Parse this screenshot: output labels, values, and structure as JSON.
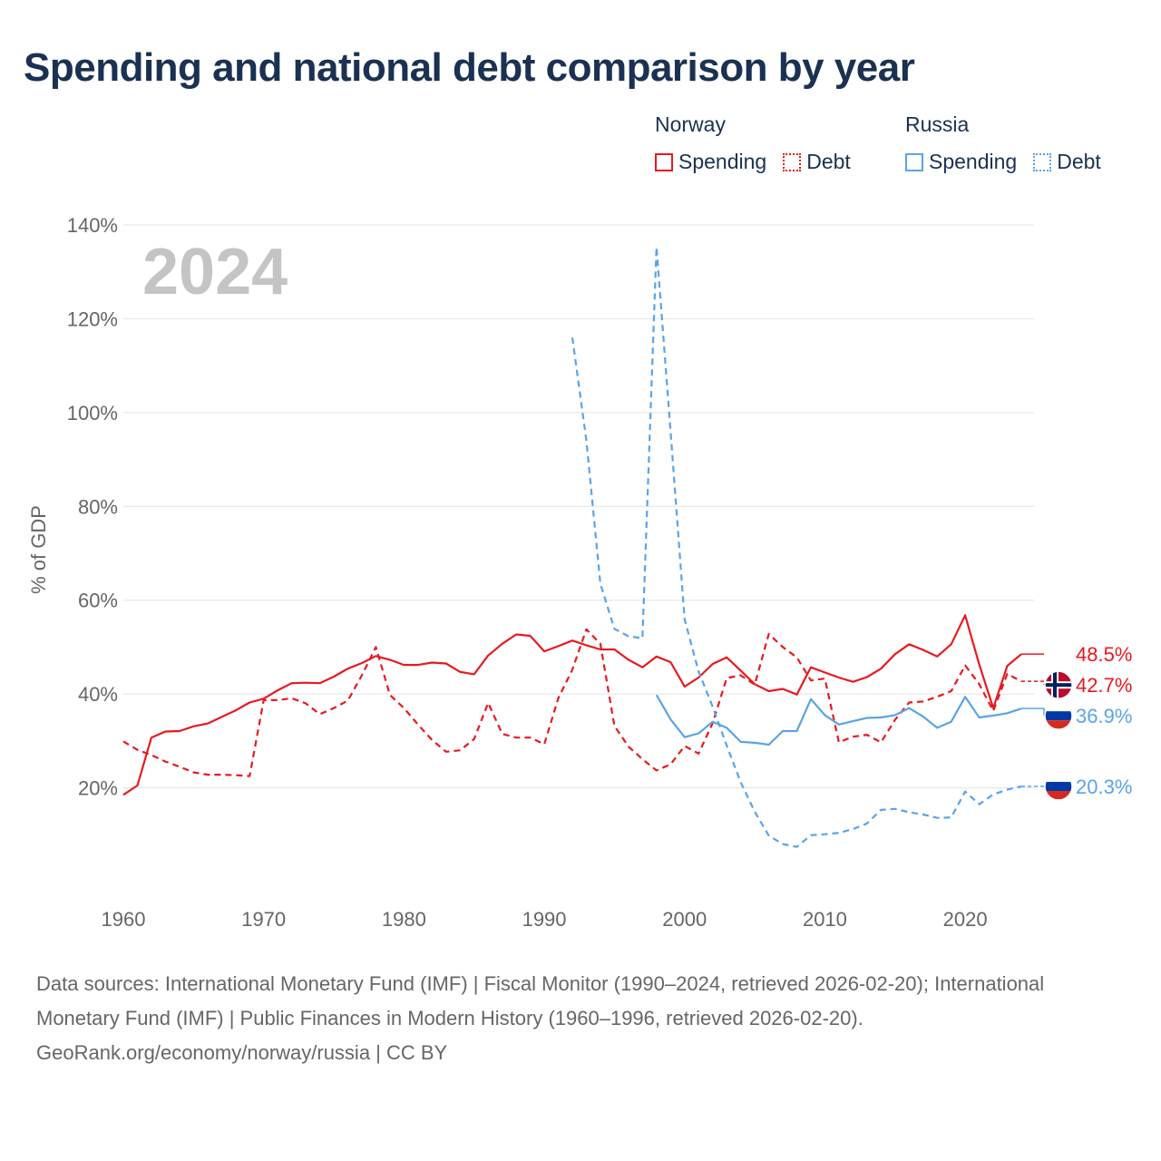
{
  "title": "Spending and national debt comparison by year",
  "legend": {
    "groups": [
      {
        "country": "Norway",
        "items": [
          {
            "label": "Spending",
            "style": "solid",
            "color": "#e8191f"
          },
          {
            "label": "Debt",
            "style": "dotted",
            "color": "#e8191f"
          }
        ]
      },
      {
        "country": "Russia",
        "items": [
          {
            "label": "Spending",
            "style": "solid",
            "color": "#5aa4e6"
          },
          {
            "label": "Debt",
            "style": "dotted",
            "color": "#5aa4e6"
          }
        ]
      }
    ]
  },
  "chart_data": {
    "type": "line",
    "year_label": "2024",
    "ylabel": "% of GDP",
    "xlim": [
      1960,
      2025
    ],
    "ylim": [
      0,
      140
    ],
    "x_ticks": [
      1960,
      1970,
      1980,
      1990,
      2000,
      2010,
      2020
    ],
    "x_tick_labels": [
      "1960",
      "1970",
      "1980",
      "1990",
      "2000",
      "2010",
      "2020"
    ],
    "y_ticks": [
      20,
      40,
      60,
      80,
      100,
      120,
      140
    ],
    "y_tick_labels": [
      "20%",
      "40%",
      "60%",
      "80%",
      "100%",
      "120%",
      "140%"
    ],
    "series": [
      {
        "name": "Norway Spending",
        "country": "Norway",
        "flag": "norway",
        "color": "#e8191f",
        "dashed": false,
        "end_label": "48.5%",
        "points": [
          [
            1960,
            18.5
          ],
          [
            1961,
            20.5
          ],
          [
            1962,
            30.7
          ],
          [
            1963,
            32.0
          ],
          [
            1964,
            32.1
          ],
          [
            1965,
            33.1
          ],
          [
            1966,
            33.7
          ],
          [
            1967,
            35.1
          ],
          [
            1968,
            36.5
          ],
          [
            1969,
            38.2
          ],
          [
            1970,
            39.0
          ],
          [
            1971,
            40.8
          ],
          [
            1972,
            42.3
          ],
          [
            1973,
            42.4
          ],
          [
            1974,
            42.3
          ],
          [
            1975,
            43.7
          ],
          [
            1976,
            45.4
          ],
          [
            1977,
            46.6
          ],
          [
            1978,
            48.1
          ],
          [
            1979,
            47.3
          ],
          [
            1980,
            46.2
          ],
          [
            1981,
            46.2
          ],
          [
            1982,
            46.7
          ],
          [
            1983,
            46.5
          ],
          [
            1984,
            44.7
          ],
          [
            1985,
            44.2
          ],
          [
            1986,
            48.2
          ],
          [
            1987,
            50.7
          ],
          [
            1988,
            52.7
          ],
          [
            1989,
            52.4
          ],
          [
            1990,
            49.1
          ],
          [
            1991,
            50.2
          ],
          [
            1992,
            51.4
          ],
          [
            1993,
            50.4
          ],
          [
            1994,
            49.5
          ],
          [
            1995,
            49.5
          ],
          [
            1996,
            47.3
          ],
          [
            1997,
            45.7
          ],
          [
            1998,
            48.0
          ],
          [
            1999,
            46.8
          ],
          [
            2000,
            41.6
          ],
          [
            2001,
            43.5
          ],
          [
            2002,
            46.4
          ],
          [
            2003,
            47.8
          ],
          [
            2004,
            45.0
          ],
          [
            2005,
            42.1
          ],
          [
            2006,
            40.6
          ],
          [
            2007,
            41.1
          ],
          [
            2008,
            39.9
          ],
          [
            2009,
            45.7
          ],
          [
            2010,
            44.6
          ],
          [
            2011,
            43.5
          ],
          [
            2012,
            42.6
          ],
          [
            2013,
            43.6
          ],
          [
            2014,
            45.4
          ],
          [
            2015,
            48.5
          ],
          [
            2016,
            50.6
          ],
          [
            2017,
            49.4
          ],
          [
            2018,
            48.0
          ],
          [
            2019,
            50.6
          ],
          [
            2020,
            56.8
          ],
          [
            2021,
            46.3
          ],
          [
            2022,
            37.0
          ],
          [
            2023,
            46.0
          ],
          [
            2024,
            48.5
          ]
        ]
      },
      {
        "name": "Norway Debt",
        "country": "Norway",
        "flag": "norway",
        "color": "#e8191f",
        "dashed": true,
        "end_label": "42.7%",
        "points": [
          [
            1960,
            29.9
          ],
          [
            1961,
            28.1
          ],
          [
            1962,
            27.0
          ],
          [
            1963,
            25.6
          ],
          [
            1964,
            24.5
          ],
          [
            1965,
            23.3
          ],
          [
            1966,
            22.8
          ],
          [
            1967,
            22.8
          ],
          [
            1968,
            22.7
          ],
          [
            1969,
            22.5
          ],
          [
            1970,
            38.7
          ],
          [
            1971,
            38.7
          ],
          [
            1972,
            39.1
          ],
          [
            1973,
            38.0
          ],
          [
            1974,
            35.7
          ],
          [
            1975,
            37.0
          ],
          [
            1976,
            38.6
          ],
          [
            1977,
            44.0
          ],
          [
            1978,
            50.0
          ],
          [
            1979,
            39.8
          ],
          [
            1980,
            37.0
          ],
          [
            1981,
            33.5
          ],
          [
            1982,
            30.2
          ],
          [
            1983,
            27.7
          ],
          [
            1984,
            28.0
          ],
          [
            1985,
            30.4
          ],
          [
            1986,
            38.1
          ],
          [
            1987,
            31.5
          ],
          [
            1988,
            30.7
          ],
          [
            1989,
            30.7
          ],
          [
            1990,
            29.3
          ],
          [
            1991,
            39.1
          ],
          [
            1992,
            45.2
          ],
          [
            1993,
            53.8
          ],
          [
            1994,
            50.7
          ],
          [
            1995,
            33.2
          ],
          [
            1996,
            28.8
          ],
          [
            1997,
            26.1
          ],
          [
            1998,
            23.7
          ],
          [
            1999,
            25.0
          ],
          [
            2000,
            28.9
          ],
          [
            2001,
            27.3
          ],
          [
            2002,
            33.8
          ],
          [
            2003,
            43.4
          ],
          [
            2004,
            44.0
          ],
          [
            2005,
            42.0
          ],
          [
            2006,
            52.8
          ],
          [
            2007,
            50.0
          ],
          [
            2008,
            47.8
          ],
          [
            2009,
            42.9
          ],
          [
            2010,
            43.3
          ],
          [
            2011,
            29.7
          ],
          [
            2012,
            30.9
          ],
          [
            2013,
            31.3
          ],
          [
            2014,
            29.7
          ],
          [
            2015,
            34.5
          ],
          [
            2016,
            38.2
          ],
          [
            2017,
            38.4
          ],
          [
            2018,
            39.4
          ],
          [
            2019,
            40.6
          ],
          [
            2020,
            46.1
          ],
          [
            2021,
            42.1
          ],
          [
            2022,
            36.4
          ],
          [
            2023,
            44.3
          ],
          [
            2024,
            42.7
          ]
        ]
      },
      {
        "name": "Russia Spending",
        "country": "Russia",
        "flag": "russia",
        "color": "#5aa4e6",
        "dashed": false,
        "end_label": "36.9%",
        "points": [
          [
            1998,
            39.8
          ],
          [
            1999,
            34.6
          ],
          [
            2000,
            30.8
          ],
          [
            2001,
            31.6
          ],
          [
            2002,
            34.1
          ],
          [
            2003,
            32.8
          ],
          [
            2004,
            29.8
          ],
          [
            2005,
            29.6
          ],
          [
            2006,
            29.2
          ],
          [
            2007,
            32.1
          ],
          [
            2008,
            32.1
          ],
          [
            2009,
            38.9
          ],
          [
            2010,
            35.5
          ],
          [
            2011,
            33.5
          ],
          [
            2012,
            34.2
          ],
          [
            2013,
            34.9
          ],
          [
            2014,
            35.0
          ],
          [
            2015,
            35.5
          ],
          [
            2016,
            37.0
          ],
          [
            2017,
            35.2
          ],
          [
            2018,
            32.8
          ],
          [
            2019,
            34.1
          ],
          [
            2020,
            39.4
          ],
          [
            2021,
            35.0
          ],
          [
            2022,
            35.4
          ],
          [
            2023,
            35.9
          ],
          [
            2024,
            36.9
          ]
        ]
      },
      {
        "name": "Russia Debt",
        "country": "Russia",
        "flag": "russia",
        "color": "#5aa4e6",
        "dashed": true,
        "end_label": "20.3%",
        "points": [
          [
            1992,
            116.0
          ],
          [
            1993,
            94.0
          ],
          [
            1994,
            63.5
          ],
          [
            1995,
            53.9
          ],
          [
            1996,
            52.3
          ],
          [
            1997,
            51.9
          ],
          [
            1998,
            135.3
          ],
          [
            1999,
            96.0
          ],
          [
            2000,
            55.9
          ],
          [
            2001,
            44.8
          ],
          [
            2002,
            37.3
          ],
          [
            2003,
            29.0
          ],
          [
            2004,
            21.2
          ],
          [
            2005,
            14.9
          ],
          [
            2006,
            9.8
          ],
          [
            2007,
            8.0
          ],
          [
            2008,
            7.4
          ],
          [
            2009,
            9.9
          ],
          [
            2010,
            10.1
          ],
          [
            2011,
            10.4
          ],
          [
            2012,
            11.2
          ],
          [
            2013,
            12.4
          ],
          [
            2014,
            15.3
          ],
          [
            2015,
            15.5
          ],
          [
            2016,
            14.8
          ],
          [
            2017,
            14.3
          ],
          [
            2018,
            13.6
          ],
          [
            2019,
            13.7
          ],
          [
            2020,
            19.2
          ],
          [
            2021,
            16.5
          ],
          [
            2022,
            18.6
          ],
          [
            2023,
            19.6
          ],
          [
            2024,
            20.3
          ]
        ]
      }
    ]
  },
  "footer": {
    "sources": "Data sources: International Monetary Fund (IMF) | Fiscal Monitor (1990–2024, retrieved 2026-02-20); International Monetary Fund (IMF) | Public Finances in Modern History (1960–1996, retrieved 2026-02-20).",
    "credit": "GeoRank.org/economy/norway/russia | CC BY"
  }
}
